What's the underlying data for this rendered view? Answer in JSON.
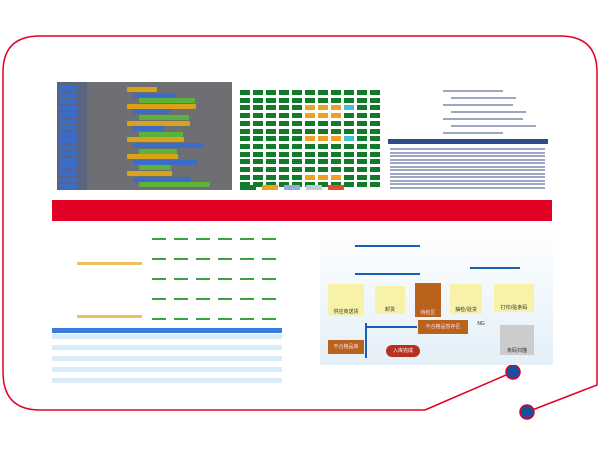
{
  "colors": {
    "frame": "#e20025",
    "band": "#e20025",
    "dot": "#1a4fa0",
    "grid_ok": "#117a2b",
    "grid_warn": "#f0a020",
    "grid_info": "#40c0d0"
  },
  "flow": {
    "nodes": [
      {
        "id": "supplier",
        "label": "供应商送货"
      },
      {
        "id": "unload",
        "label": "卸货"
      },
      {
        "id": "wait",
        "label": "待检区"
      },
      {
        "id": "inspect",
        "label": "抽检/验货"
      },
      {
        "id": "label",
        "label": "打印/贴条码"
      },
      {
        "id": "scan",
        "label": "条码扫描"
      },
      {
        "id": "done",
        "label": "入库完成"
      },
      {
        "id": "ng_hold",
        "label": "不合格品暂存区"
      },
      {
        "id": "ng_store",
        "label": "不合格品库"
      }
    ],
    "ng": "NG"
  }
}
